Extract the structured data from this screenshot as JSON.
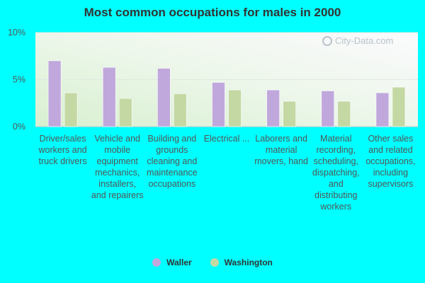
{
  "chart_data": {
    "type": "bar",
    "title": "Most common occupations for males in 2000",
    "xlabel": "",
    "ylabel": "",
    "ylim": [
      0,
      10
    ],
    "yticks": [
      "0%",
      "5%",
      "10%"
    ],
    "grid": true,
    "legend_position": "bottom",
    "categories": [
      "Driver/sales workers and truck drivers",
      "Vehicle and mobile equipment mechanics, installers, and repairers",
      "Building and grounds cleaning and maintenance occupations",
      "Electrical ...",
      "Laborers and material movers, hand",
      "Material recording, scheduling, dispatching, and distributing workers",
      "Other sales and related occupations, including supervisors"
    ],
    "series": [
      {
        "name": "Waller",
        "color": "#c0a8dc",
        "values": [
          7.0,
          6.3,
          6.2,
          4.7,
          3.9,
          3.8,
          3.6
        ]
      },
      {
        "name": "Washington",
        "color": "#c4d8a4",
        "values": [
          3.6,
          3.0,
          3.5,
          3.9,
          2.7,
          2.7,
          4.2
        ]
      }
    ],
    "watermark": "City-Data.com"
  }
}
